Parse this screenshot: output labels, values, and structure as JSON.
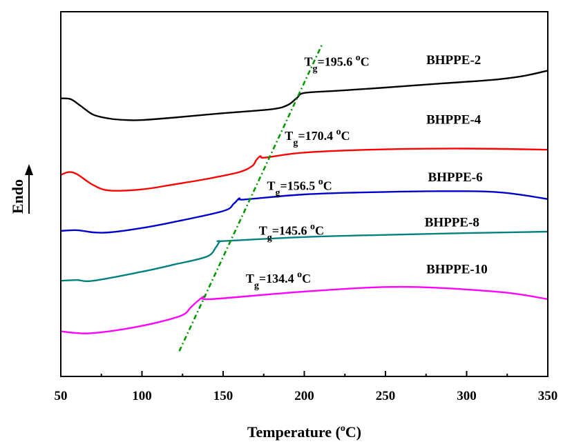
{
  "chart_data": {
    "type": "line",
    "xlabel": "Temperature (",
    "xlabel_sup": "o",
    "xlabel_end": "C)",
    "ylabel": "Endo",
    "xlim": [
      50,
      350
    ],
    "x_ticks": [
      50,
      100,
      150,
      200,
      250,
      300,
      350
    ],
    "x_tick_labels": [
      "50",
      "100",
      "150",
      "200",
      "250",
      "300",
      "350"
    ],
    "grid": false,
    "y_ticks_shown": false,
    "colors": {
      "BHPPE-2": "#000000",
      "BHPPE-4": "#ff0000",
      "BHPPE-6": "#0000cc",
      "BHPPE-8": "#008080",
      "BHPPE-10": "#ff00ff",
      "tg_trend": "#009900"
    },
    "series": [
      {
        "name": "BHPPE-2",
        "tg_text": "195.6",
        "x": [
          50,
          56,
          62,
          70,
          80,
          90,
          100,
          120,
          150,
          180,
          190,
          195.6,
          200,
          220,
          250,
          280,
          300,
          320,
          335,
          350
        ],
        "y": [
          6.5,
          6.48,
          6.3,
          6.05,
          5.94,
          5.9,
          5.9,
          5.97,
          6.09,
          6.2,
          6.32,
          6.52,
          6.65,
          6.71,
          6.8,
          6.9,
          6.96,
          7.03,
          7.12,
          7.27
        ]
      },
      {
        "name": "BHPPE-4",
        "tg_text": "170.4",
        "x": [
          50,
          55,
          60,
          70,
          80,
          100,
          120,
          140,
          160,
          168,
          170.4,
          173,
          176,
          200,
          250,
          300,
          350
        ],
        "y": [
          4.38,
          4.46,
          4.4,
          4.1,
          3.95,
          3.98,
          4.12,
          4.27,
          4.46,
          4.63,
          4.79,
          4.9,
          4.86,
          5.0,
          5.09,
          5.11,
          5.08
        ]
      },
      {
        "name": "BHPPE-6",
        "tg_text": "156.5",
        "x": [
          50,
          60,
          70,
          80,
          100,
          120,
          150,
          156.5,
          160,
          163,
          200,
          250,
          300,
          320,
          335,
          350
        ],
        "y": [
          2.83,
          2.85,
          2.79,
          2.79,
          2.91,
          3.08,
          3.38,
          3.58,
          3.73,
          3.7,
          3.84,
          3.91,
          3.93,
          3.9,
          3.82,
          3.71
        ]
      },
      {
        "name": "BHPPE-8",
        "tg_text": "145.6",
        "x": [
          50,
          60,
          70,
          100,
          120,
          140,
          145.6,
          148,
          151,
          200,
          250,
          300,
          350
        ],
        "y": [
          1.45,
          1.47,
          1.45,
          1.7,
          1.9,
          2.12,
          2.38,
          2.54,
          2.55,
          2.66,
          2.72,
          2.77,
          2.81
        ]
      },
      {
        "name": "BHPPE-10",
        "tg_text": "134.4",
        "x": [
          50,
          60,
          70,
          90,
          110,
          125,
          130,
          134.4,
          139,
          142,
          200,
          260,
          320,
          350
        ],
        "y": [
          0.05,
          0.0,
          0.0,
          0.12,
          0.3,
          0.5,
          0.71,
          0.89,
          1.03,
          0.94,
          1.15,
          1.28,
          1.14,
          0.94
        ]
      }
    ],
    "annotations": [
      {
        "series": "BHPPE-2",
        "at": [
          200,
          7.4
        ]
      },
      {
        "series": "BHPPE-4",
        "at": [
          188,
          5.35
        ]
      },
      {
        "series": "BHPPE-6",
        "at": [
          177,
          3.96
        ]
      },
      {
        "series": "BHPPE-8",
        "at": [
          172,
          2.72
        ]
      },
      {
        "series": "BHPPE-10",
        "at": [
          164,
          1.4
        ]
      }
    ],
    "curve_labels": [
      {
        "series": "BHPPE-2",
        "at": [
          292,
          7.45
        ]
      },
      {
        "series": "BHPPE-4",
        "at": [
          292,
          5.8
        ]
      },
      {
        "series": "BHPPE-6",
        "at": [
          293,
          4.2
        ]
      },
      {
        "series": "BHPPE-8",
        "at": [
          291,
          2.95
        ]
      },
      {
        "series": "BHPPE-10",
        "at": [
          294,
          1.65
        ]
      }
    ],
    "tg_trend_line": {
      "x": [
        123,
        211
      ],
      "y": [
        -0.5,
        8.0
      ]
    }
  }
}
